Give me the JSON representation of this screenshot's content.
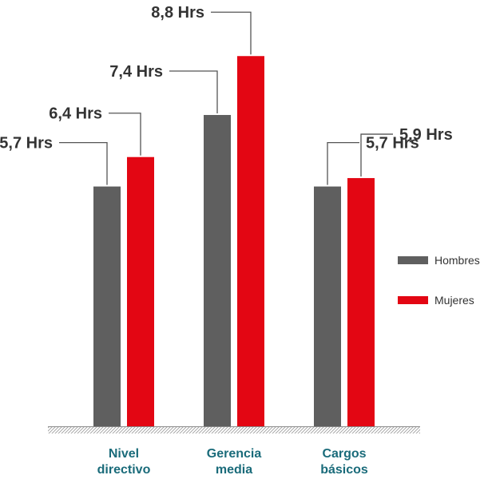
{
  "chart_data": {
    "type": "bar",
    "title": "",
    "xlabel": "",
    "ylabel": "",
    "ylim": [
      0,
      8.8
    ],
    "grid": false,
    "legend_placement": "right",
    "categories": [
      {
        "line1": "Nivel",
        "line2": "directivo"
      },
      {
        "line1": "Gerencia",
        "line2": "media"
      },
      {
        "line1": "Cargos",
        "line2": "básicos"
      }
    ],
    "series": [
      {
        "name": "Hombres",
        "color": "#5f5f5f",
        "values": [
          5.7,
          7.4,
          5.7
        ],
        "labels": [
          "5,7 Hrs",
          "7,4 Hrs",
          "5,7 Hrs"
        ]
      },
      {
        "name": "Mujeres",
        "color": "#e30613",
        "values": [
          6.4,
          8.8,
          5.9
        ],
        "labels": [
          "6,4 Hrs",
          "8,8 Hrs",
          "5,9 Hrs"
        ]
      }
    ],
    "category_label_color": "#1a6b7a",
    "callout_line_color": "#555555"
  }
}
